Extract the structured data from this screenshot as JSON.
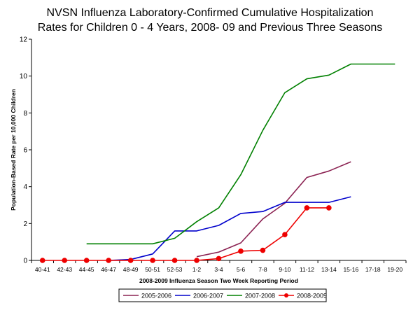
{
  "chart_data": {
    "type": "line",
    "title_lines": [
      "NVSN Influenza Laboratory-Confirmed Cumulative Hospitalization",
      "Rates for Children 0 - 4 Years, 2008- 09 and Previous Three Seasons"
    ],
    "xlabel": "2008-2009 Influenza Season Two Week Reporting Period",
    "ylabel": "Population-Based Rate per 10,000 Children",
    "ylim": [
      0,
      12
    ],
    "yticks": [
      0,
      2,
      4,
      6,
      8,
      10,
      12
    ],
    "grid": false,
    "legend_position": "bottom",
    "categories": [
      "40-41",
      "42-43",
      "44-45",
      "46-47",
      "48-49",
      "50-51",
      "52-53",
      "1-2",
      "3-4",
      "5-6",
      "7-8",
      "9-10",
      "11-12",
      "13-14",
      "15-16",
      "17-18",
      "19-20"
    ],
    "series": [
      {
        "name": "2005-2006",
        "color": "#8b2252",
        "marker": "none",
        "values": [
          null,
          null,
          null,
          null,
          null,
          null,
          null,
          0.2,
          0.45,
          0.95,
          2.25,
          3.1,
          4.5,
          4.85,
          5.35,
          null,
          null
        ]
      },
      {
        "name": "2006-2007",
        "color": "#0000cc",
        "marker": "none",
        "values": [
          null,
          null,
          null,
          0,
          0.05,
          0.35,
          1.6,
          1.6,
          1.9,
          2.55,
          2.65,
          3.15,
          3.15,
          3.15,
          3.45,
          null,
          null
        ]
      },
      {
        "name": "2007-2008",
        "color": "#008000",
        "marker": "none",
        "values": [
          null,
          null,
          0.9,
          0.9,
          0.9,
          0.9,
          1.2,
          2.1,
          2.85,
          4.65,
          7.05,
          9.1,
          9.85,
          10.05,
          10.65,
          10.65,
          10.65
        ]
      },
      {
        "name": "2008-2009",
        "color": "#ee0000",
        "marker": "circle",
        "values": [
          0,
          0,
          0,
          0,
          0,
          0,
          0,
          0,
          0.1,
          0.5,
          0.55,
          1.4,
          2.85,
          2.85,
          null,
          null,
          null
        ]
      }
    ]
  }
}
